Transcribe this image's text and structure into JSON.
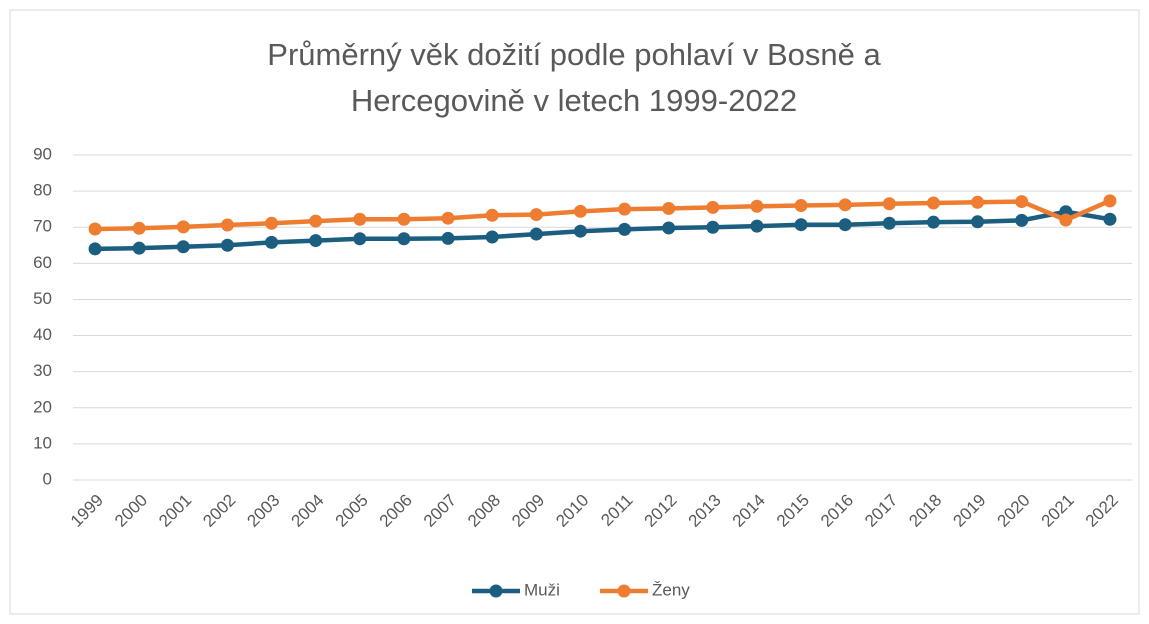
{
  "chart_data": {
    "type": "line",
    "title": "Průměrný věk dožití podle pohlaví v Bosně a Hercegovině v letech 1999-2022",
    "categories": [
      "1999",
      "2000",
      "2001",
      "2002",
      "2003",
      "2004",
      "2005",
      "2006",
      "2007",
      "2008",
      "2009",
      "2010",
      "2011",
      "2012",
      "2013",
      "2014",
      "2015",
      "2016",
      "2017",
      "2018",
      "2019",
      "2020",
      "2021",
      "2022"
    ],
    "series": [
      {
        "name": "Muži",
        "color": "#1b5e80",
        "values": [
          64.0,
          64.2,
          64.6,
          65.0,
          65.8,
          66.3,
          66.8,
          66.8,
          66.9,
          67.3,
          68.1,
          68.9,
          69.4,
          69.8,
          70.0,
          70.3,
          70.7,
          70.7,
          71.1,
          71.4,
          71.5,
          71.9,
          74.3,
          72.2
        ]
      },
      {
        "name": "Ženy",
        "color": "#ee7d31",
        "values": [
          69.5,
          69.7,
          70.1,
          70.6,
          71.1,
          71.7,
          72.2,
          72.2,
          72.5,
          73.3,
          73.5,
          74.4,
          75.0,
          75.2,
          75.5,
          75.8,
          76.0,
          76.2,
          76.5,
          76.7,
          76.9,
          77.1,
          72.0,
          77.3
        ]
      }
    ],
    "ylim": [
      0,
      90
    ],
    "yticks": [
      0,
      10,
      20,
      30,
      40,
      50,
      60,
      70,
      80,
      90
    ],
    "grid": true,
    "legend": "bottom"
  }
}
